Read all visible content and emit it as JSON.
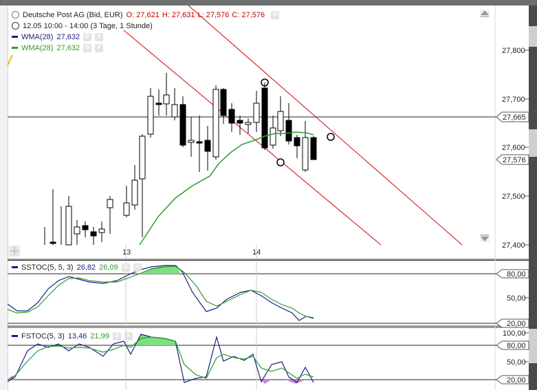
{
  "header": {
    "instrument": "Deutsche Post AG (Bid, EUR)",
    "ohlc": {
      "open": "O: 27,621",
      "high": "H: 27,631",
      "low": "L: 27,576",
      "close": "C: 27,576"
    },
    "period": "12.05 10:00 - 14:00 (3 Tage, 1 Stunde)",
    "wma1_label": "WMA(28)",
    "wma1_value": "27,632",
    "wma2_label": "WMA(28)",
    "wma2_value": "27,632"
  },
  "price_axis": {
    "ticks": [
      "27,800",
      "27,700",
      "27,600",
      "27,500",
      "27,400"
    ],
    "flag_current": "27,665",
    "flag_last": "27,576"
  },
  "time_axis": {
    "ticks": [
      "13",
      "14"
    ]
  },
  "sstoc": {
    "label": "SSTOC(5, 5, 3)",
    "k": "26,82",
    "d": "26,09",
    "ticks": [
      "80,00",
      "50,00",
      "20,00"
    ]
  },
  "fstoc": {
    "label": "FSTOC(5, 3)",
    "k": "13,46",
    "d": "21,99",
    "ticks": [
      "100,00",
      "80,00",
      "50,00",
      "20,00"
    ]
  },
  "colors": {
    "blue": "#1a1a8c",
    "green": "#2e9a2e",
    "red": "#d40000",
    "fill": "#80dd80"
  },
  "icons": [
    "gear-icon",
    "close-icon",
    "scroll-up-icon",
    "scroll-down-icon",
    "crosshair-icon"
  ]
}
